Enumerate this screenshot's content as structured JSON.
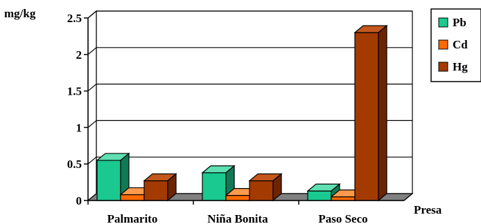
{
  "chart_data": {
    "type": "bar",
    "ylabel": "mg/kg",
    "xlabel": "Presa",
    "categories": [
      "Palmarito",
      "Niña Bonita",
      "Paso Seco"
    ],
    "ylim": [
      0,
      2.5
    ],
    "yticks": [
      "0",
      "0.5",
      "1",
      "1.5",
      "2",
      "2.5"
    ],
    "grid": true,
    "legend_position": "top-right",
    "series": [
      {
        "name": "Pb",
        "color": "#1ac98f",
        "side_color": "#0f7a55",
        "top_color": "#5fe0b2",
        "values": [
          0.55,
          0.38,
          0.13
        ]
      },
      {
        "name": "Cd",
        "color": "#ff6a00",
        "side_color": "#b34700",
        "top_color": "#ff9a4d",
        "values": [
          0.08,
          0.07,
          0.05
        ]
      },
      {
        "name": "Hg",
        "color": "#a33a00",
        "side_color": "#6b2500",
        "top_color": "#c4581c",
        "values": [
          0.27,
          0.27,
          2.3
        ]
      }
    ]
  }
}
